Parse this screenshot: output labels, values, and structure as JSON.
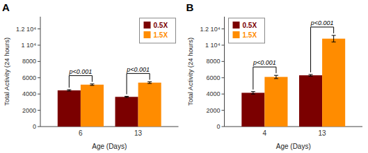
{
  "chart_data": [
    {
      "type": "bar",
      "title": "A",
      "categories": [
        "6",
        "13"
      ],
      "series": [
        {
          "name": "0.5X",
          "color": "#7B0000",
          "values": [
            4450,
            3650
          ],
          "errors": [
            80,
            70
          ]
        },
        {
          "name": "1.5X",
          "color": "#FF8C00",
          "values": [
            5150,
            5400
          ],
          "errors": [
            90,
            100
          ]
        }
      ],
      "annotations": [
        "p<0.001",
        "p<0.001"
      ],
      "xlabel": "Age (Days)",
      "ylabel": "Total Activity (24 hours)",
      "ylim": [
        0,
        13500
      ],
      "yticks": [
        0,
        2000,
        4000,
        6000,
        8000,
        {
          "value": 10000,
          "label": "1 10⁴"
        },
        {
          "value": 12000,
          "label": "1.2 10⁴"
        }
      ],
      "legend": "upper right",
      "grid": false
    },
    {
      "type": "bar",
      "title": "B",
      "categories": [
        "4",
        "13"
      ],
      "series": [
        {
          "name": "0.5X",
          "color": "#7B0000",
          "values": [
            4150,
            6300
          ],
          "errors": [
            150,
            100
          ]
        },
        {
          "name": "1.5X",
          "color": "#FF8C00",
          "values": [
            6100,
            10800
          ],
          "errors": [
            200,
            400
          ]
        }
      ],
      "annotations": [
        "p<0.001",
        "p<0.001"
      ],
      "xlabel": "Age (Days)",
      "ylabel": "Total Activity (24 hours)",
      "ylim": [
        0,
        13500
      ],
      "yticks": [
        0,
        2000,
        4000,
        6000,
        8000,
        {
          "value": 10000,
          "label": "1 10⁴"
        },
        {
          "value": 12000,
          "label": "1.2 10⁴"
        }
      ],
      "legend": "upper left",
      "grid": false
    }
  ]
}
